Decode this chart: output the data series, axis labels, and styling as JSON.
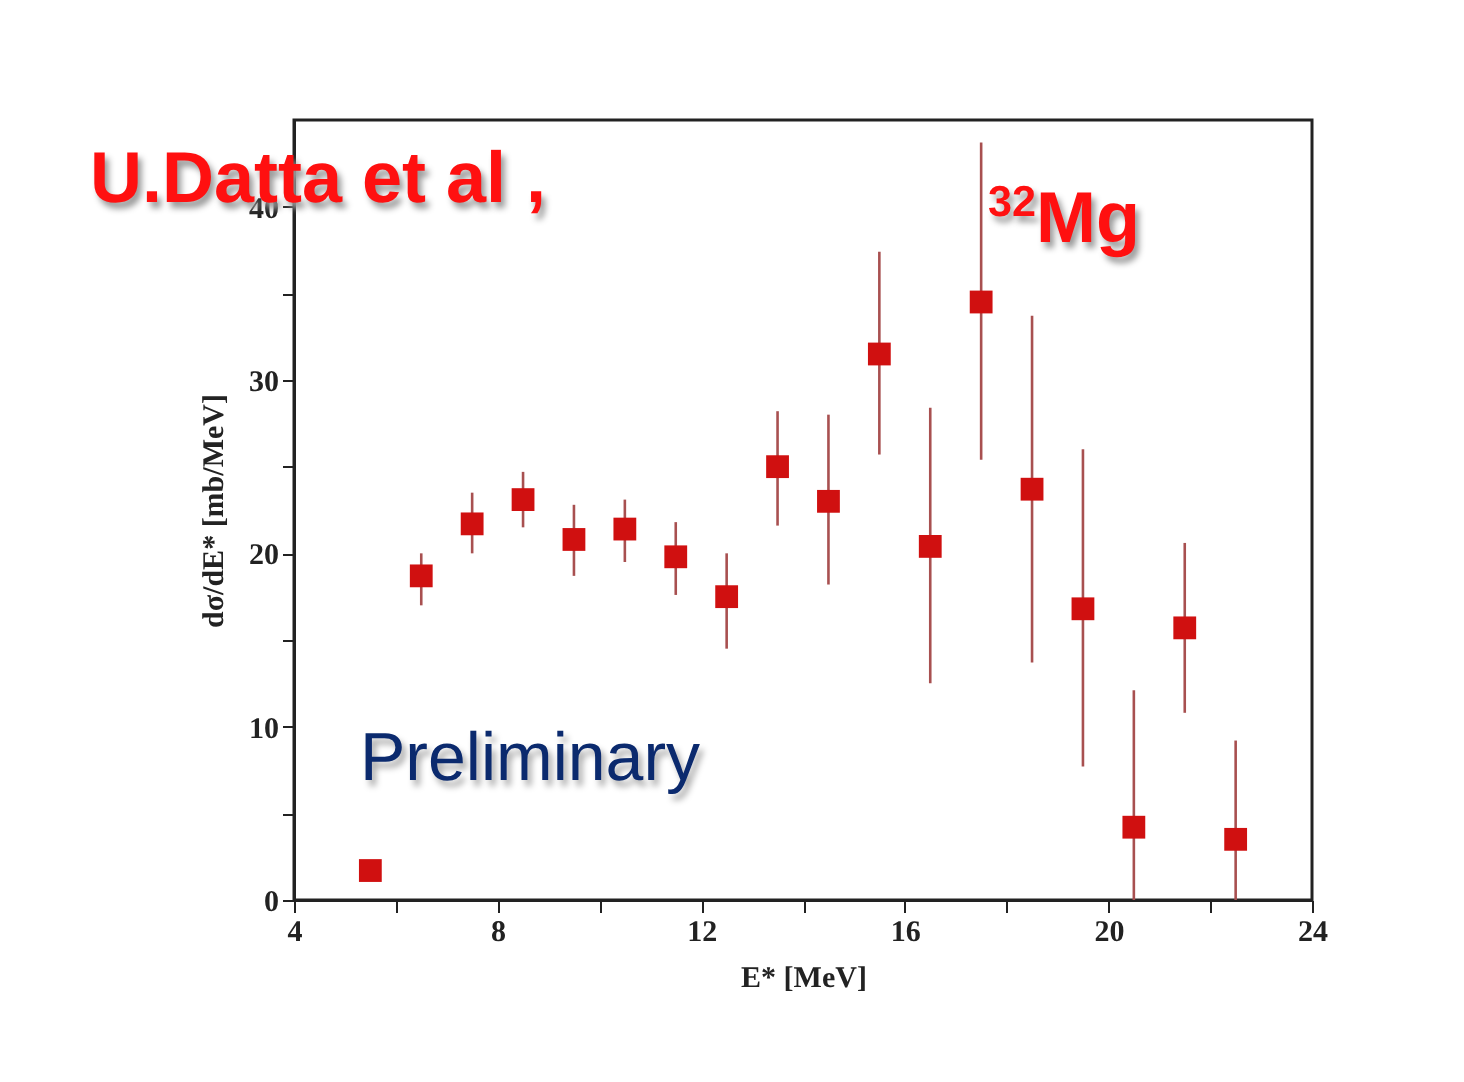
{
  "chart_data": {
    "type": "scatter",
    "xlabel": "E* [MeV]",
    "ylabel": "dσ/dE* [mb/MeV]",
    "annotations": [
      "U.Datta et al ,",
      "$^{32}$Mg",
      "Preliminary"
    ],
    "x": [
      5.5,
      6.5,
      7.5,
      8.5,
      9.5,
      10.5,
      11.5,
      12.5,
      13.5,
      14.5,
      15.5,
      16.5,
      17.5,
      18.5,
      19.5,
      20.5,
      21.5,
      22.5
    ],
    "series": [
      {
        "color": "#d01010",
        "values": [
          1.7,
          18.7,
          21.7,
          23.1,
          20.8,
          21.4,
          19.8,
          17.5,
          25.0,
          23.0,
          31.5,
          20.4,
          34.5,
          23.7,
          16.8,
          4.2,
          15.7,
          3.5
        ],
        "errors": [
          null,
          [
            17.0,
            20.0
          ],
          [
            20.0,
            23.5
          ],
          [
            21.5,
            24.7
          ],
          [
            18.7,
            22.8
          ],
          [
            19.5,
            23.1
          ],
          [
            17.6,
            21.8
          ],
          [
            14.5,
            20.0
          ],
          [
            21.6,
            28.2
          ],
          [
            18.2,
            28.0
          ],
          [
            25.7,
            37.4
          ],
          [
            12.5,
            28.4
          ],
          [
            25.4,
            43.7
          ],
          [
            13.7,
            33.7
          ],
          [
            7.7,
            26.0
          ],
          [
            0,
            12.1
          ],
          [
            10.8,
            20.6
          ],
          [
            0,
            9.2
          ]
        ]
      }
    ],
    "xlim": [
      4,
      24
    ],
    "ylim": [
      0,
      45
    ],
    "xticks": [
      4,
      {
        "value": 6,
        "label": null
      },
      8,
      {
        "value": 10,
        "label": null
      },
      12,
      {
        "value": 14,
        "label": null
      },
      16,
      {
        "value": 18,
        "label": null
      },
      20,
      {
        "value": 22,
        "label": null
      },
      24
    ],
    "yticks": [
      0,
      {
        "value": 5,
        "label": null
      },
      10,
      {
        "value": 15,
        "label": null
      },
      20,
      {
        "value": 25,
        "label": null
      },
      30,
      {
        "value": 35,
        "label": null
      },
      40
    ],
    "grid": false,
    "marker": "square"
  }
}
